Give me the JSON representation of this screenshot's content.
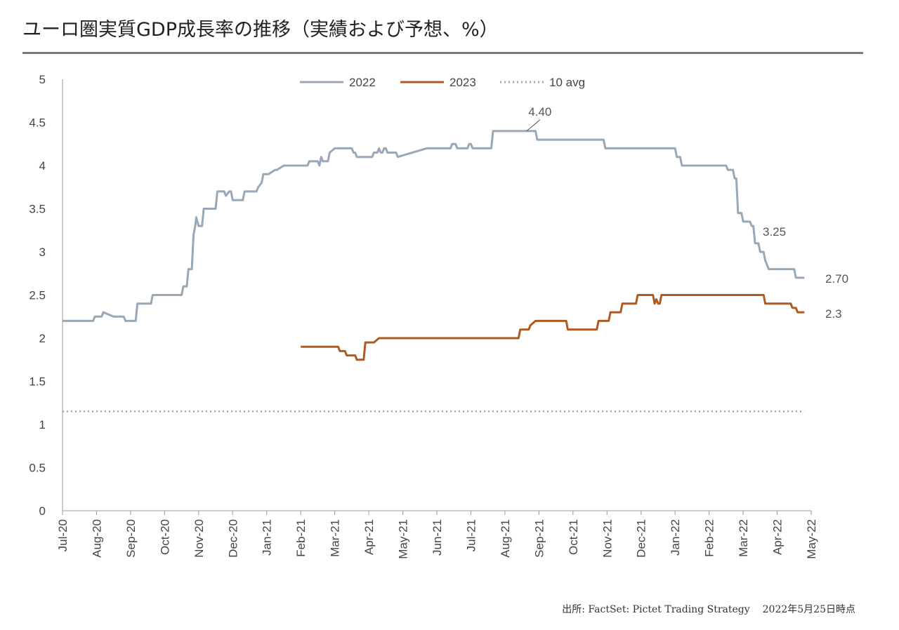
{
  "title": "ユーロ圏実質GDP成長率の推移（実績および予想、%）",
  "source": "出所: FactSet: Pictet Trading Strategy",
  "as_of": "2022年5月25日時点",
  "colors": {
    "s2022": "#98a8b8",
    "s2023": "#b05a22",
    "avg": "#a8a898"
  },
  "chart_data": {
    "type": "line",
    "ylim": [
      0,
      5
    ],
    "yticks": [
      "0",
      "0.5",
      "1",
      "1.5",
      "2",
      "2.5",
      "3",
      "3.5",
      "4",
      "4.5",
      "5"
    ],
    "xlim": [
      0,
      22.4
    ],
    "xticks": [
      "Jul-20",
      "Aug-20",
      "Sep-20",
      "Oct-20",
      "Nov-20",
      "Dec-20",
      "Jan-21",
      "Feb-21",
      "Mar-21",
      "Apr-21",
      "May-21",
      "Jun-21",
      "Jul-21",
      "Aug-21",
      "Sep-21",
      "Oct-21",
      "Nov-21",
      "Dec-21",
      "Jan-22",
      "Feb-22",
      "Mar-22",
      "Apr-22",
      "May-22"
    ],
    "legend": {
      "position": "top-center"
    },
    "series": [
      {
        "name": "2022",
        "x": [
          0,
          0.9,
          0.95,
          1.15,
          1.2,
          1.5,
          1.55,
          1.65,
          1.7,
          1.8,
          1.85,
          2.15,
          2.2,
          2.3,
          2.35,
          2.6,
          2.65,
          3.5,
          3.55,
          3.65,
          3.7,
          3.8,
          3.85,
          3.9,
          3.93,
          4.0,
          4.1,
          4.15,
          4.5,
          4.55,
          4.75,
          4.8,
          4.9,
          4.95,
          5.0,
          5.3,
          5.35,
          5.7,
          5.75,
          5.85,
          5.9,
          6.0,
          6.05,
          6.25,
          6.3,
          6.5,
          6.55,
          7.2,
          7.25,
          7.5,
          7.55,
          7.6,
          7.65,
          7.8,
          7.85,
          8.0,
          8.05,
          8.1,
          8.15,
          8.5,
          8.55,
          8.6,
          8.65,
          8.7,
          9.1,
          9.15,
          9.25,
          9.3,
          9.35,
          9.4,
          9.45,
          9.5,
          9.55,
          9.8,
          9.85,
          10.7,
          10.75,
          11.4,
          11.45,
          11.55,
          11.6,
          11.9,
          11.95,
          12.0,
          12.05,
          12.6,
          12.65,
          13.4,
          13.45,
          13.9,
          13.95,
          15.9,
          15.95,
          18.0,
          18.05,
          18.15,
          18.2,
          19.5,
          19.55,
          19.7,
          19.75,
          19.8,
          19.85,
          19.95,
          20.0,
          20.2,
          20.25,
          20.3,
          20.35,
          20.45,
          20.5,
          20.6,
          20.65,
          20.75,
          21.5,
          21.55,
          21.8
        ],
        "y": [
          2.2,
          2.2,
          2.25,
          2.25,
          2.3,
          2.25,
          2.25,
          2.25,
          2.25,
          2.25,
          2.2,
          2.2,
          2.4,
          2.4,
          2.4,
          2.4,
          2.5,
          2.5,
          2.6,
          2.6,
          2.8,
          2.8,
          3.2,
          3.3,
          3.4,
          3.3,
          3.3,
          3.5,
          3.5,
          3.7,
          3.7,
          3.65,
          3.7,
          3.7,
          3.6,
          3.6,
          3.7,
          3.7,
          3.75,
          3.8,
          3.9,
          3.9,
          3.9,
          3.95,
          3.95,
          4.0,
          4.0,
          4.0,
          4.05,
          4.05,
          4.0,
          4.1,
          4.05,
          4.05,
          4.15,
          4.2,
          4.2,
          4.2,
          4.2,
          4.2,
          4.15,
          4.15,
          4.1,
          4.1,
          4.1,
          4.15,
          4.15,
          4.2,
          4.15,
          4.15,
          4.2,
          4.2,
          4.15,
          4.15,
          4.1,
          4.2,
          4.2,
          4.2,
          4.25,
          4.25,
          4.2,
          4.2,
          4.25,
          4.25,
          4.2,
          4.2,
          4.4,
          4.4,
          4.4,
          4.4,
          4.3,
          4.3,
          4.2,
          4.2,
          4.1,
          4.1,
          4.0,
          4.0,
          3.95,
          3.95,
          3.85,
          3.85,
          3.45,
          3.45,
          3.35,
          3.35,
          3.3,
          3.3,
          3.1,
          3.1,
          3.0,
          3.0,
          2.9,
          2.8,
          2.8,
          2.7,
          2.7
        ]
      },
      {
        "name": "2023",
        "x": [
          7.0,
          8.1,
          8.15,
          8.3,
          8.35,
          8.6,
          8.65,
          8.85,
          8.9,
          9.1,
          9.15,
          9.3,
          9.35,
          13.4,
          13.45,
          13.7,
          13.75,
          13.9,
          13.95,
          14.8,
          14.85,
          15.7,
          15.75,
          16.05,
          16.1,
          16.4,
          16.45,
          16.85,
          16.9,
          17.35,
          17.4,
          17.45,
          17.5,
          17.55,
          17.6,
          20.6,
          20.65,
          21.4,
          21.45,
          21.55,
          21.6,
          21.8
        ],
        "y": [
          1.9,
          1.9,
          1.85,
          1.85,
          1.8,
          1.8,
          1.75,
          1.75,
          1.95,
          1.95,
          1.95,
          2.0,
          2.0,
          2.0,
          2.1,
          2.1,
          2.15,
          2.2,
          2.2,
          2.2,
          2.1,
          2.1,
          2.2,
          2.2,
          2.3,
          2.3,
          2.4,
          2.4,
          2.5,
          2.5,
          2.4,
          2.45,
          2.4,
          2.4,
          2.5,
          2.5,
          2.4,
          2.4,
          2.35,
          2.35,
          2.3,
          2.3
        ]
      },
      {
        "name": "10 avg",
        "x": [
          0,
          21.8
        ],
        "y": [
          1.15,
          1.15
        ]
      }
    ],
    "annotations": [
      {
        "text": "4.40",
        "x": 13.7,
        "y": 4.4,
        "leader": true
      },
      {
        "text": "3.25",
        "x": 20.8,
        "y": 3.25
      },
      {
        "text": "2.70",
        "x": 21.8,
        "y": 2.7
      },
      {
        "text": "2.3",
        "x": 21.8,
        "y": 2.3
      }
    ]
  }
}
